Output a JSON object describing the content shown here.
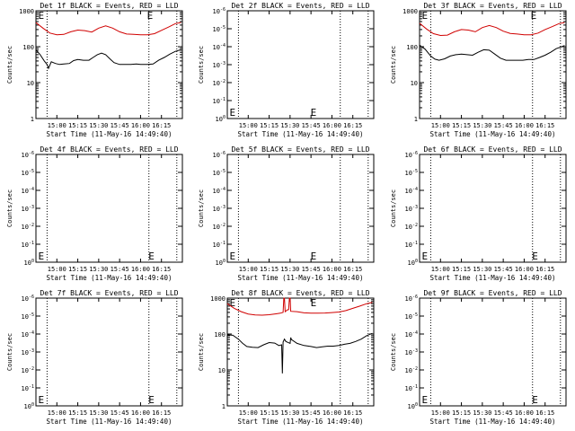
{
  "colors": {
    "events": "#000000",
    "lld": "#d00000",
    "axes": "#000000",
    "background": "#ffffff"
  },
  "common": {
    "ylabel": "Counts/sec",
    "xlabel": "Start Time (11-May-16 14:49:40)",
    "x_ticks": [
      "15:00",
      "15:15",
      "15:30",
      "15:45",
      "16:00",
      "16:15"
    ],
    "x_tick_minutes": [
      15,
      30,
      45,
      60,
      75,
      90
    ],
    "xlim_minutes": [
      0,
      105
    ],
    "dotted_markers_minutes": [
      8,
      81,
      101
    ],
    "event_marker": "E"
  },
  "chart_data": [
    {
      "type": "line",
      "title": "Det 1f BLACK = Events, RED = LLD",
      "scale": "log",
      "ylim": [
        1,
        1000
      ],
      "y_ticks": [
        "1",
        "10",
        "100",
        "1000"
      ],
      "e_markers": [
        {
          "x": 1,
          "pos": "top"
        },
        {
          "x": 79,
          "pos": "top"
        }
      ],
      "series": [
        {
          "name": "LLD",
          "color": "red",
          "points": [
            [
              0,
              470
            ],
            [
              5,
              330
            ],
            [
              10,
              240
            ],
            [
              15,
              215
            ],
            [
              20,
              220
            ],
            [
              25,
              260
            ],
            [
              30,
              290
            ],
            [
              35,
              280
            ],
            [
              40,
              255
            ],
            [
              45,
              330
            ],
            [
              50,
              380
            ],
            [
              55,
              330
            ],
            [
              60,
              260
            ],
            [
              65,
              225
            ],
            [
              70,
              220
            ],
            [
              75,
              215
            ],
            [
              80,
              215
            ],
            [
              85,
              230
            ],
            [
              90,
              285
            ],
            [
              95,
              350
            ],
            [
              100,
              440
            ],
            [
              104,
              470
            ]
          ]
        },
        {
          "name": "Events",
          "color": "black",
          "points": [
            [
              0,
              82
            ],
            [
              3,
              60
            ],
            [
              6,
              40
            ],
            [
              8,
              32
            ],
            [
              9,
              25
            ],
            [
              11,
              38
            ],
            [
              14,
              34
            ],
            [
              17,
              32
            ],
            [
              20,
              33
            ],
            [
              24,
              34
            ],
            [
              27,
              41
            ],
            [
              30,
              44
            ],
            [
              34,
              42
            ],
            [
              38,
              42
            ],
            [
              41,
              50
            ],
            [
              44,
              60
            ],
            [
              47,
              66
            ],
            [
              50,
              60
            ],
            [
              53,
              46
            ],
            [
              56,
              36
            ],
            [
              60,
              32
            ],
            [
              64,
              32
            ],
            [
              68,
              32
            ],
            [
              72,
              33
            ],
            [
              75,
              32
            ],
            [
              80,
              32
            ],
            [
              84,
              33
            ],
            [
              88,
              42
            ],
            [
              92,
              50
            ],
            [
              96,
              62
            ],
            [
              100,
              74
            ],
            [
              104,
              82
            ]
          ]
        }
      ]
    },
    {
      "type": "line",
      "title": "Det 2f BLACK = Events, RED = LLD",
      "scale": "pow",
      "ylim": [
        1,
        1e-06
      ],
      "y_ticks": [
        "10^0",
        "10^-1",
        "10^-2",
        "10^-3",
        "10^-4",
        "10^-5",
        "10^-6"
      ],
      "e_markers": [
        {
          "x": 1,
          "pos": "bottom"
        },
        {
          "x": 59,
          "pos": "bottom"
        }
      ],
      "series": []
    },
    {
      "type": "line",
      "title": "Det 3f BLACK = Events, RED = LLD",
      "scale": "log",
      "ylim": [
        1,
        1000
      ],
      "y_ticks": [
        "1",
        "10",
        "100",
        "1000"
      ],
      "e_markers": [
        {
          "x": 1,
          "pos": "top"
        },
        {
          "x": 79,
          "pos": "top"
        }
      ],
      "series": [
        {
          "name": "LLD",
          "color": "red",
          "points": [
            [
              0,
              450
            ],
            [
              5,
              310
            ],
            [
              10,
              230
            ],
            [
              15,
              205
            ],
            [
              20,
              210
            ],
            [
              25,
              260
            ],
            [
              30,
              300
            ],
            [
              35,
              290
            ],
            [
              40,
              260
            ],
            [
              45,
              340
            ],
            [
              50,
              390
            ],
            [
              55,
              340
            ],
            [
              60,
              270
            ],
            [
              65,
              235
            ],
            [
              70,
              225
            ],
            [
              75,
              215
            ],
            [
              80,
              215
            ],
            [
              85,
              240
            ],
            [
              90,
              300
            ],
            [
              95,
              360
            ],
            [
              100,
              440
            ],
            [
              104,
              470
            ]
          ]
        },
        {
          "name": "Events",
          "color": "black",
          "points": [
            [
              0,
              110
            ],
            [
              4,
              85
            ],
            [
              8,
              55
            ],
            [
              11,
              45
            ],
            [
              14,
              42
            ],
            [
              18,
              46
            ],
            [
              22,
              55
            ],
            [
              26,
              60
            ],
            [
              30,
              62
            ],
            [
              34,
              60
            ],
            [
              38,
              58
            ],
            [
              42,
              70
            ],
            [
              46,
              82
            ],
            [
              50,
              80
            ],
            [
              54,
              62
            ],
            [
              58,
              48
            ],
            [
              62,
              42
            ],
            [
              66,
              42
            ],
            [
              70,
              42
            ],
            [
              74,
              42
            ],
            [
              78,
              44
            ],
            [
              82,
              44
            ],
            [
              86,
              50
            ],
            [
              90,
              58
            ],
            [
              94,
              70
            ],
            [
              98,
              88
            ],
            [
              102,
              100
            ],
            [
              104,
              108
            ]
          ]
        }
      ]
    },
    {
      "type": "line",
      "title": "Det 4f BLACK = Events, RED = LLD",
      "scale": "pow",
      "ylim": [
        1,
        1e-06
      ],
      "y_ticks": [
        "10^0",
        "10^-1",
        "10^-2",
        "10^-3",
        "10^-4",
        "10^-5",
        "10^-6"
      ],
      "e_markers": [
        {
          "x": 1,
          "pos": "bottom"
        },
        {
          "x": 80,
          "pos": "bottom"
        }
      ],
      "series": []
    },
    {
      "type": "line",
      "title": "Det 5f BLACK = Events, RED = LLD",
      "scale": "pow",
      "ylim": [
        1,
        1e-06
      ],
      "y_ticks": [
        "10^0",
        "10^-1",
        "10^-2",
        "10^-3",
        "10^-4",
        "10^-5",
        "10^-6"
      ],
      "e_markers": [
        {
          "x": 1,
          "pos": "bottom"
        },
        {
          "x": 59,
          "pos": "bottom"
        }
      ],
      "series": []
    },
    {
      "type": "line",
      "title": "Det 6f BLACK = Events, RED = LLD",
      "scale": "pow",
      "ylim": [
        1,
        1e-06
      ],
      "y_ticks": [
        "10^0",
        "10^-1",
        "10^-2",
        "10^-3",
        "10^-4",
        "10^-5",
        "10^-6"
      ],
      "e_markers": [
        {
          "x": 1,
          "pos": "bottom"
        },
        {
          "x": 80,
          "pos": "bottom"
        }
      ],
      "series": []
    },
    {
      "type": "line",
      "title": "Det 7f BLACK = Events, RED = LLD",
      "scale": "pow",
      "ylim": [
        1,
        1e-06
      ],
      "y_ticks": [
        "10^0",
        "10^-1",
        "10^-2",
        "10^-3",
        "10^-4",
        "10^-5",
        "10^-6"
      ],
      "e_markers": [
        {
          "x": 1,
          "pos": "bottom"
        },
        {
          "x": 80,
          "pos": "bottom"
        }
      ],
      "series": []
    },
    {
      "type": "line",
      "title": "Det 8f BLACK = Events, RED = LLD",
      "scale": "log",
      "ylim": [
        1,
        1000
      ],
      "y_ticks": [
        "1",
        "10",
        "100",
        "1000"
      ],
      "e_markers": [
        {
          "x": 1,
          "pos": "top"
        },
        {
          "x": 59,
          "pos": "top"
        }
      ],
      "series": [
        {
          "name": "LLD",
          "color": "red",
          "points": [
            [
              0,
              700
            ],
            [
              5,
              520
            ],
            [
              10,
              420
            ],
            [
              15,
              360
            ],
            [
              20,
              340
            ],
            [
              25,
              335
            ],
            [
              30,
              345
            ],
            [
              35,
              365
            ],
            [
              38,
              380
            ],
            [
              40,
              400
            ],
            [
              40.5,
              1000
            ],
            [
              41,
              1000
            ],
            [
              41.5,
              420
            ],
            [
              43,
              470
            ],
            [
              44,
              480
            ],
            [
              44.5,
              1000
            ],
            [
              45,
              1000
            ],
            [
              45.5,
              430
            ],
            [
              50,
              420
            ],
            [
              55,
              390
            ],
            [
              60,
              380
            ],
            [
              65,
              380
            ],
            [
              70,
              385
            ],
            [
              75,
              395
            ],
            [
              80,
              410
            ],
            [
              85,
              450
            ],
            [
              90,
              520
            ],
            [
              95,
              600
            ],
            [
              100,
              700
            ],
            [
              104,
              760
            ]
          ]
        },
        {
          "name": "Events",
          "color": "black",
          "points": [
            [
              0,
              95
            ],
            [
              4,
              92
            ],
            [
              8,
              72
            ],
            [
              11,
              55
            ],
            [
              14,
              45
            ],
            [
              18,
              43
            ],
            [
              22,
              42
            ],
            [
              26,
              50
            ],
            [
              30,
              58
            ],
            [
              34,
              56
            ],
            [
              37,
              48
            ],
            [
              39,
              50
            ],
            [
              39.5,
              8
            ],
            [
              40,
              60
            ],
            [
              41,
              72
            ],
            [
              42,
              62
            ],
            [
              45,
              55
            ],
            [
              45.5,
              80
            ],
            [
              46,
              70
            ],
            [
              50,
              55
            ],
            [
              55,
              48
            ],
            [
              60,
              45
            ],
            [
              64,
              42
            ],
            [
              68,
              44
            ],
            [
              72,
              46
            ],
            [
              76,
              46
            ],
            [
              80,
              48
            ],
            [
              84,
              52
            ],
            [
              88,
              55
            ],
            [
              92,
              62
            ],
            [
              96,
              72
            ],
            [
              100,
              90
            ],
            [
              104,
              105
            ]
          ]
        }
      ]
    },
    {
      "type": "line",
      "title": "Det 9f BLACK = Events, RED = LLD",
      "scale": "pow",
      "ylim": [
        1,
        1e-06
      ],
      "y_ticks": [
        "10^0",
        "10^-1",
        "10^-2",
        "10^-3",
        "10^-4",
        "10^-5",
        "10^-6"
      ],
      "e_markers": [
        {
          "x": 1,
          "pos": "bottom"
        },
        {
          "x": 80,
          "pos": "bottom"
        }
      ],
      "series": []
    }
  ]
}
